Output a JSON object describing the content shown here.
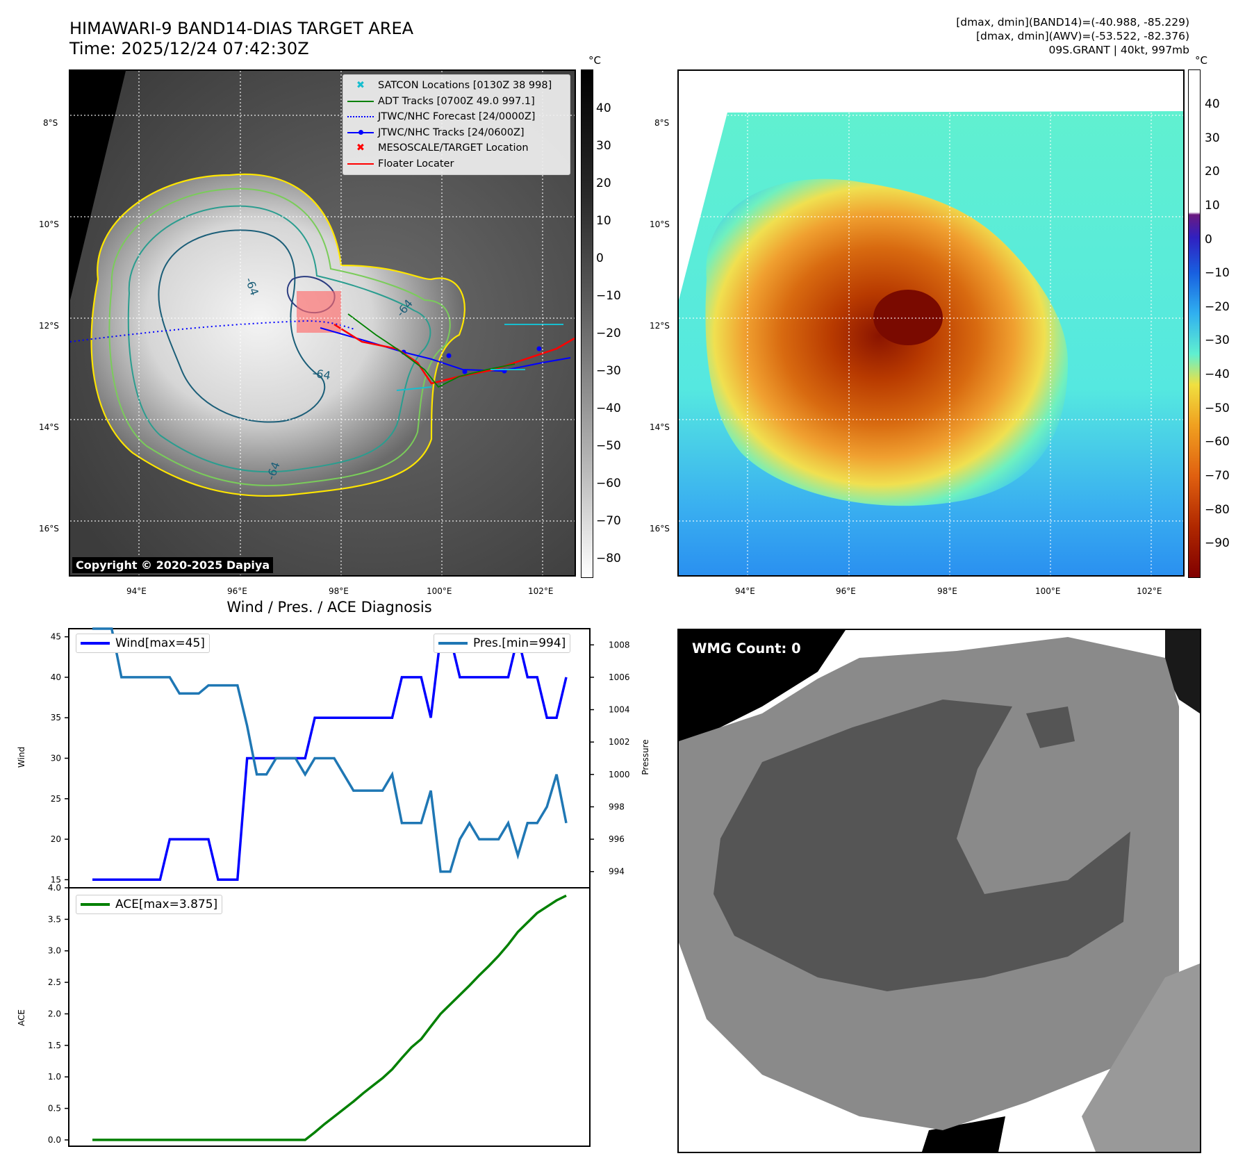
{
  "header": {
    "title_line1": "HIMAWARI-9 BAND14-DIAS TARGET AREA",
    "title_line2": "Time: 2025/12/24 07:42:30Z",
    "stats_line1": "[dmax, dmin](BAND14)=(-40.988, -85.229)",
    "stats_line2": "[dmax, dmin](AWV)=(-53.522, -82.376)",
    "stats_line3": "09S.GRANT | 40kt, 997mb"
  },
  "map_ir": {
    "unit": "°C",
    "lat_labels": [
      "8°S",
      "10°S",
      "12°S",
      "14°S",
      "16°S"
    ],
    "lon_labels": [
      "94°E",
      "96°E",
      "98°E",
      "100°E",
      "102°E"
    ],
    "colorbar_ticks": [
      "40",
      "30",
      "20",
      "10",
      "0",
      "−10",
      "−20",
      "−30",
      "−40",
      "−50",
      "−60",
      "−70",
      "−80"
    ],
    "legend": [
      {
        "label": "SATCON Locations [0130Z 38 998]",
        "symbol": "x-icon",
        "color": "#17becf"
      },
      {
        "label": "ADT Tracks [0700Z 49.0 997.1]",
        "symbol": "line",
        "color": "#008000"
      },
      {
        "label": "JTWC/NHC Forecast [24/0000Z]",
        "symbol": "dotted",
        "color": "#0000ff"
      },
      {
        "label": "JTWC/NHC Tracks [24/0600Z]",
        "symbol": "line-dot",
        "color": "#0000ff"
      },
      {
        "label": "MESOSCALE/TARGET Location",
        "symbol": "x-icon",
        "color": "#ff0000"
      },
      {
        "label": "Floater Locater",
        "symbol": "line",
        "color": "#ff0000"
      }
    ],
    "contour_labels": [
      "-64",
      "-64",
      "-64",
      "-64"
    ],
    "copyright": "Copyright © 2020-2025 Dapiya"
  },
  "map_awv": {
    "unit": "°C",
    "lat_labels": [
      "8°S",
      "10°S",
      "12°S",
      "14°S",
      "16°S"
    ],
    "lon_labels": [
      "94°E",
      "96°E",
      "98°E",
      "100°E",
      "102°E"
    ],
    "colorbar_ticks": [
      "40",
      "30",
      "20",
      "10",
      "0",
      "−10",
      "−20",
      "−30",
      "−40",
      "−50",
      "−60",
      "−70",
      "−80",
      "−90"
    ]
  },
  "wmg": {
    "label": "WMG Count: 0"
  },
  "chart_data": [
    {
      "type": "line",
      "title": "Wind / Pres. / ACE Diagnosis",
      "ylabel": "Wind",
      "ylabel_right": "Pressure",
      "ylim": [
        14,
        46
      ],
      "ylim_right": [
        993,
        1009
      ],
      "yticks": [
        15,
        20,
        25,
        30,
        35,
        40,
        45
      ],
      "yticks_right": [
        994,
        996,
        998,
        1000,
        1002,
        1004,
        1006,
        1008
      ],
      "series": [
        {
          "name": "Wind[max=45]",
          "color": "#0000ff",
          "axis": "left",
          "values": [
            15,
            15,
            15,
            15,
            15,
            15,
            15,
            15,
            20,
            20,
            20,
            20,
            20,
            15,
            15,
            15,
            30,
            30,
            30,
            30,
            30,
            30,
            30,
            35,
            35,
            35,
            35,
            35,
            35,
            35,
            35,
            35,
            40,
            40,
            40,
            35,
            45,
            45,
            40,
            40,
            40,
            40,
            40,
            40,
            45,
            40,
            40,
            35,
            35,
            40
          ]
        },
        {
          "name": "Pres.[min=994]",
          "color": "#1f77b4",
          "axis": "right",
          "values": [
            1009,
            1009,
            1009,
            1006,
            1006,
            1006,
            1006,
            1006,
            1006,
            1005,
            1005,
            1005,
            1005.5,
            1005.5,
            1005.5,
            1005.5,
            1003,
            1000,
            1000,
            1001,
            1001,
            1001,
            1000,
            1001,
            1001,
            1001,
            1000,
            999,
            999,
            999,
            999,
            1000,
            997,
            997,
            997,
            999,
            994,
            994,
            996,
            997,
            996,
            996,
            996,
            997,
            995,
            997,
            997,
            998,
            1000,
            997
          ]
        }
      ]
    },
    {
      "type": "line",
      "ylabel": "ACE",
      "ylim": [
        -0.1,
        4.0
      ],
      "yticks": [
        0.0,
        0.5,
        1.0,
        1.5,
        2.0,
        2.5,
        3.0,
        3.5,
        4.0
      ],
      "series": [
        {
          "name": "ACE[max=3.875]",
          "color": "#008000",
          "values": [
            0,
            0,
            0,
            0,
            0,
            0,
            0,
            0,
            0,
            0,
            0,
            0,
            0,
            0,
            0,
            0,
            0,
            0,
            0,
            0,
            0,
            0,
            0,
            0.12,
            0.25,
            0.37,
            0.49,
            0.61,
            0.74,
            0.86,
            0.98,
            1.12,
            1.3,
            1.47,
            1.6,
            1.8,
            2.0,
            2.15,
            2.3,
            2.45,
            2.61,
            2.76,
            2.92,
            3.1,
            3.3,
            3.45,
            3.6,
            3.7,
            3.8,
            3.875
          ]
        }
      ]
    }
  ]
}
